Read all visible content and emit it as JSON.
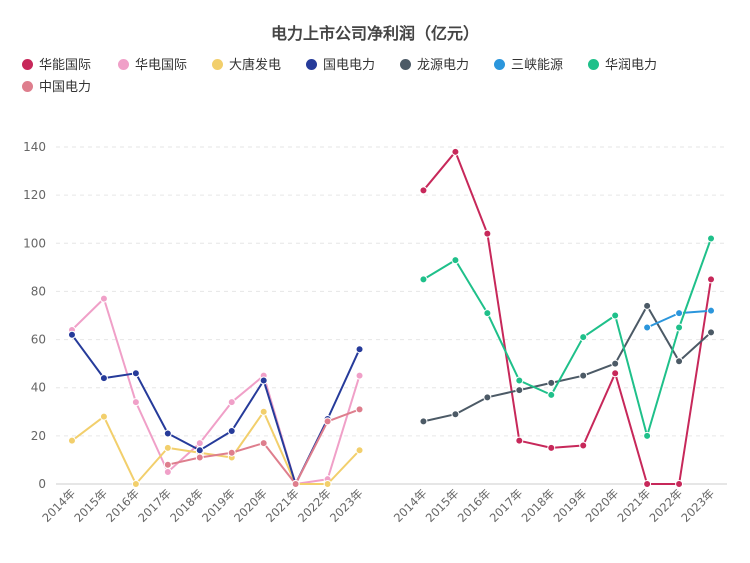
{
  "chart_data": {
    "type": "line",
    "title": "电力上市公司净利润（亿元）",
    "xlabel": "",
    "ylabel": "",
    "ylim": [
      0,
      140
    ],
    "yticks": [
      0,
      20,
      40,
      60,
      80,
      100,
      120,
      140
    ],
    "grid": true,
    "legend_position": "top-left",
    "panels": [
      {
        "categories": [
          "2014年",
          "2015年",
          "2016年",
          "2017年",
          "2018年",
          "2019年",
          "2020年",
          "2021年",
          "2022年",
          "2023年"
        ],
        "series": [
          {
            "name": "华电国际",
            "color": "#f0a0c8",
            "values": [
              64,
              77,
              34,
              5,
              17,
              34,
              45,
              0,
              2,
              45
            ]
          },
          {
            "name": "大唐发电",
            "color": "#f2cf6c",
            "values": [
              18,
              28,
              0,
              15,
              13,
              11,
              30,
              0,
              0,
              14
            ]
          },
          {
            "name": "国电电力",
            "color": "#263b9a",
            "values": [
              62,
              44,
              46,
              21,
              14,
              22,
              43,
              0,
              27,
              56
            ]
          },
          {
            "name": "中国电力",
            "color": "#de7e8d",
            "values": [
              null,
              null,
              null,
              8,
              11,
              13,
              17,
              0,
              26,
              31
            ]
          }
        ]
      },
      {
        "categories": [
          "2014年",
          "2015年",
          "2016年",
          "2017年",
          "2018年",
          "2019年",
          "2020年",
          "2021年",
          "2022年",
          "2023年"
        ],
        "series": [
          {
            "name": "华能国际",
            "color": "#c7285a",
            "values": [
              122,
              138,
              104,
              18,
              15,
              16,
              46,
              0,
              0,
              85
            ]
          },
          {
            "name": "龙源电力",
            "color": "#4c5a66",
            "values": [
              26,
              29,
              36,
              39,
              42,
              45,
              50,
              74,
              51,
              63
            ]
          },
          {
            "name": "三峡能源",
            "color": "#2b96dc",
            "values": [
              null,
              null,
              null,
              null,
              null,
              null,
              null,
              65,
              71,
              72
            ]
          },
          {
            "name": "华润电力",
            "color": "#1fc08a",
            "values": [
              85,
              93,
              71,
              43,
              37,
              61,
              70,
              20,
              65,
              102
            ]
          }
        ]
      }
    ]
  },
  "legend": [
    {
      "label": "华能国际",
      "color": "#c7285a"
    },
    {
      "label": "华电国际",
      "color": "#f0a0c8"
    },
    {
      "label": "大唐发电",
      "color": "#f2cf6c"
    },
    {
      "label": "国电电力",
      "color": "#263b9a"
    },
    {
      "label": "龙源电力",
      "color": "#4c5a66"
    },
    {
      "label": "三峡能源",
      "color": "#2b96dc"
    },
    {
      "label": "华润电力",
      "color": "#1fc08a"
    },
    {
      "label": "中国电力",
      "color": "#de7e8d"
    }
  ]
}
